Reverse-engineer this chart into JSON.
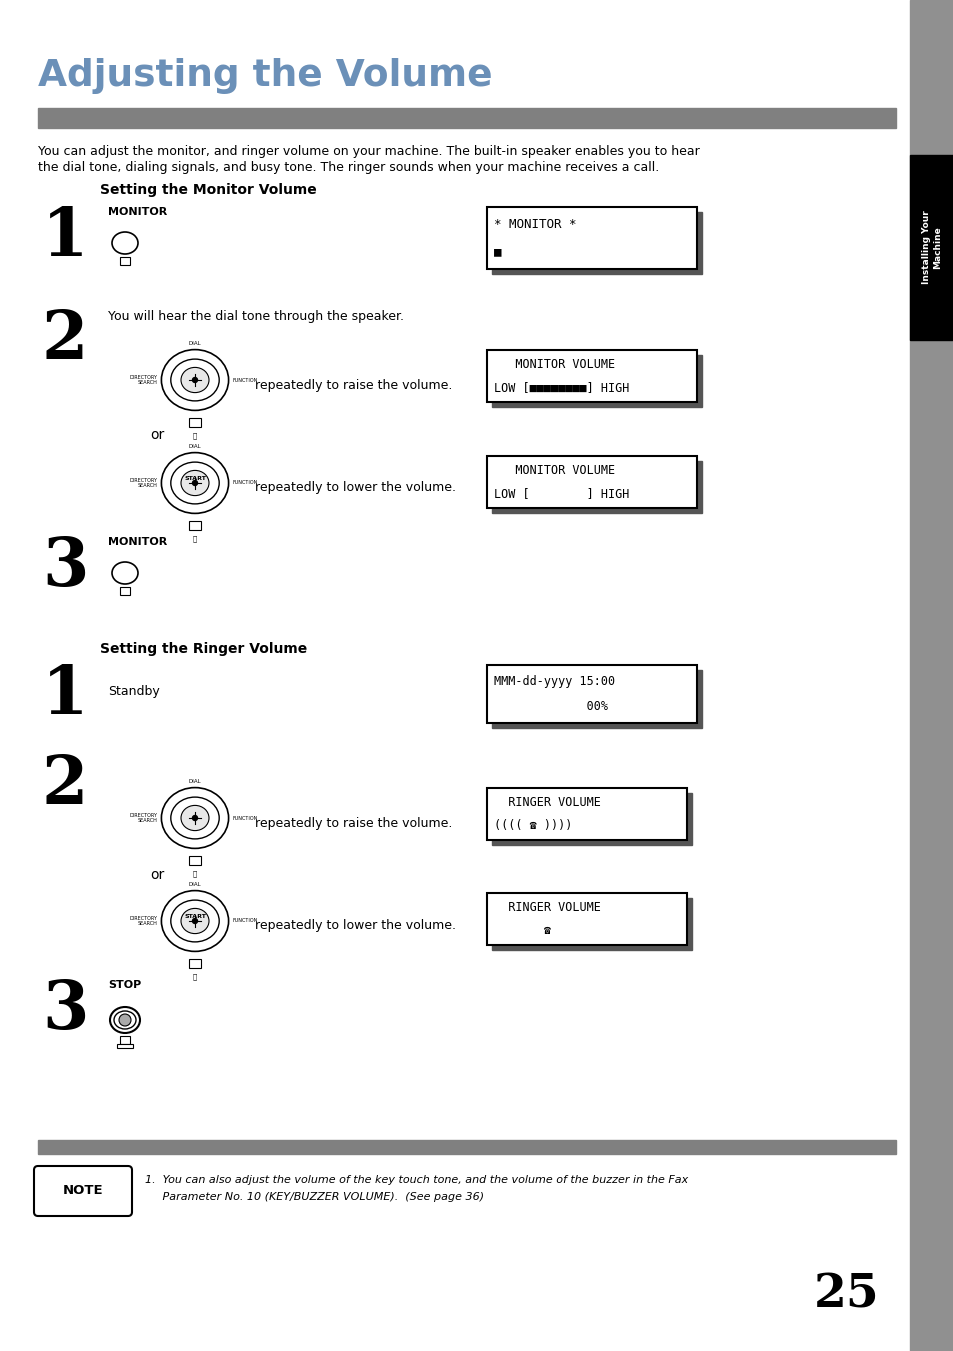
{
  "title": "Adjusting the Volume",
  "title_color": "#6b90b8",
  "page_bg": "#ffffff",
  "sidebar_color": "#909090",
  "sidebar_text": "Installing Your\nMachine",
  "sidebar_text_color": "#ffffff",
  "header_bar_color": "#808080",
  "page_number": "25",
  "intro_line1": "You can adjust the monitor, and ringer volume on your machine. The built-in speaker enables you to hear",
  "intro_line2": "the dial tone, dialing signals, and busy tone. The ringer sounds when your machine receives a call.",
  "section1_title": "Setting the Monitor Volume",
  "section2_title": "Setting the Ringer Volume",
  "note_line1": "1.  You can also adjust the volume of the key touch tone, and the volume of the buzzer in the Fax",
  "note_line2": "     Parameter No. 10 (KEY/BUZZER VOLUME).  (See page 36)",
  "lcd1_line1": "* MONITOR *",
  "lcd1_line2": "■",
  "lcd2_line1": "   MONITOR VOLUME",
  "lcd2_line2": "LOW [■■■■■■■■] HIGH",
  "lcd3_line1": "   MONITOR VOLUME",
  "lcd3_line2": "LOW [        ] HIGH",
  "lcd4_line1": "MMM-dd-yyyy 15:00",
  "lcd4_line2": "             00%",
  "lcd5_line1": "  RINGER VOLUME",
  "lcd5_line2": "(((( ☎ ))))",
  "lcd6_line1": "  RINGER VOLUME",
  "lcd6_line2": "       ☎"
}
